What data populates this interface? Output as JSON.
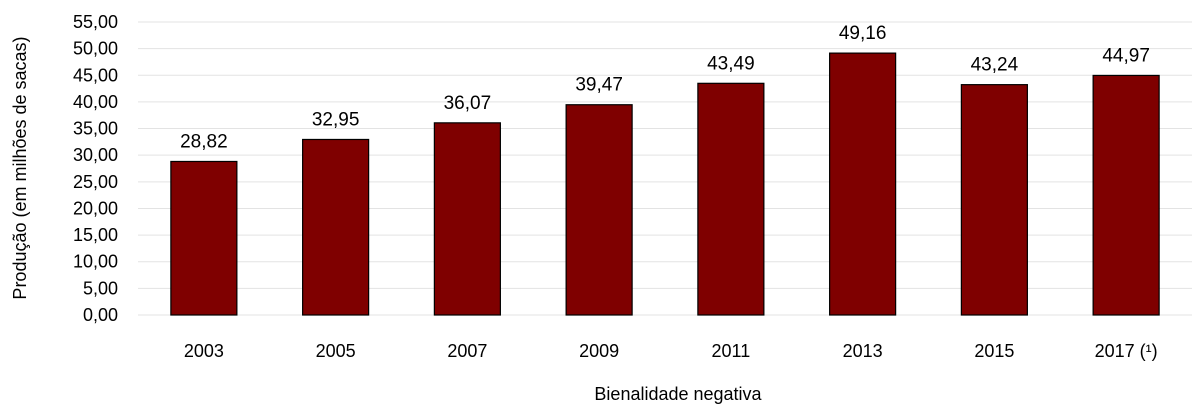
{
  "chart_data": {
    "type": "bar",
    "categories": [
      "2003",
      "2005",
      "2007",
      "2009",
      "2011",
      "2013",
      "2015",
      "2017 (¹)"
    ],
    "values": [
      28.82,
      32.95,
      36.07,
      39.47,
      43.49,
      49.16,
      43.24,
      44.97
    ],
    "value_labels": [
      "28,82",
      "32,95",
      "36,07",
      "39,47",
      "43,49",
      "49,16",
      "43,24",
      "44,97"
    ],
    "xlabel": "Bienalidade negativa",
    "ylabel": "Produção (em milhões de sacas)",
    "ylim": [
      0,
      55
    ],
    "yticks": [
      "0,00",
      "5,00",
      "10,00",
      "15,00",
      "20,00",
      "25,00",
      "30,00",
      "35,00",
      "40,00",
      "45,00",
      "50,00",
      "55,00"
    ],
    "grid": true,
    "legend": "none",
    "bar_color": "#7f0000",
    "bar_outline_color": "#000000"
  }
}
